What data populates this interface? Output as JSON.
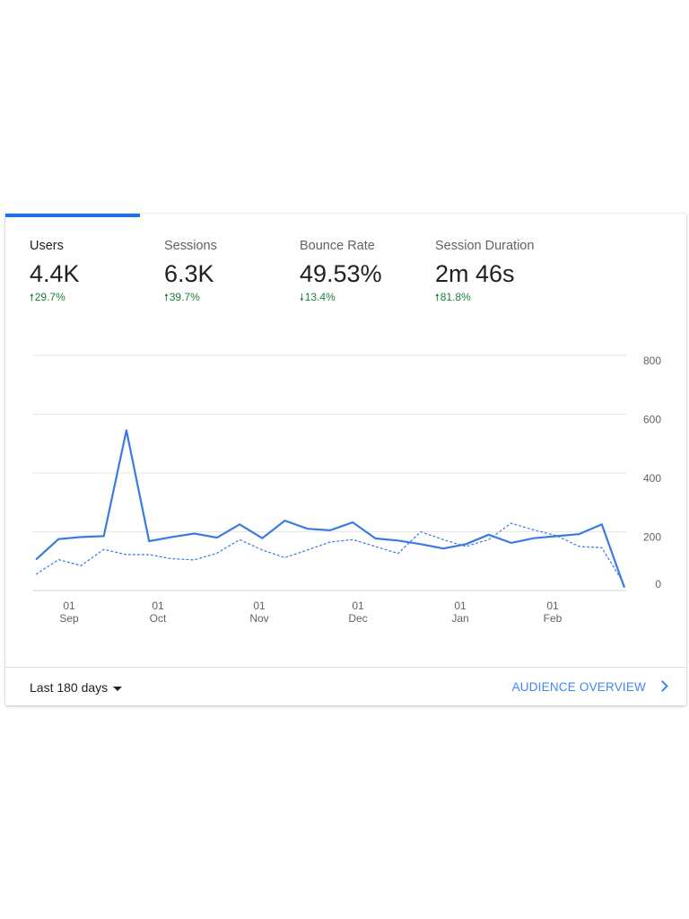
{
  "metrics": [
    {
      "label": "Users",
      "value": "4.4K",
      "delta": "29.7%",
      "direction": "up"
    },
    {
      "label": "Sessions",
      "value": "6.3K",
      "delta": "39.7%",
      "direction": "up"
    },
    {
      "label": "Bounce Rate",
      "value": "49.53%",
      "delta": "13.4%",
      "direction": "down"
    },
    {
      "label": "Session Duration",
      "value": "2m 46s",
      "delta": "81.8%",
      "direction": "up"
    }
  ],
  "icons": {
    "up": "arrow-up-icon",
    "down": "arrow-down-icon"
  },
  "footer": {
    "range_label": "Last 180 days",
    "link_label": "AUDIENCE OVERVIEW"
  },
  "colors": {
    "accent": "#1a73e8",
    "line": "#3b7be0",
    "positive": "#188038"
  },
  "chart_data": {
    "type": "line",
    "y_ticks": [
      "800",
      "600",
      "400",
      "200",
      "0"
    ],
    "ylim": [
      0,
      800
    ],
    "x_ticks": [
      {
        "day": "01",
        "month": "Sep"
      },
      {
        "day": "01",
        "month": "Oct"
      },
      {
        "day": "01",
        "month": "Nov"
      },
      {
        "day": "01",
        "month": "Dec"
      },
      {
        "day": "01",
        "month": "Jan"
      },
      {
        "day": "01",
        "month": "Feb"
      }
    ],
    "series": [
      {
        "style": "solid",
        "values": [
          105,
          175,
          182,
          185,
          545,
          168,
          182,
          194,
          180,
          225,
          178,
          238,
          210,
          205,
          232,
          177,
          170,
          158,
          143,
          158,
          190,
          162,
          178,
          185,
          192,
          225,
          10
        ]
      },
      {
        "style": "dashed",
        "values": [
          55,
          105,
          85,
          140,
          122,
          122,
          108,
          104,
          127,
          173,
          138,
          112,
          138,
          165,
          173,
          150,
          126,
          200,
          173,
          150,
          173,
          229,
          206,
          187,
          150,
          146,
          20
        ]
      }
    ]
  }
}
